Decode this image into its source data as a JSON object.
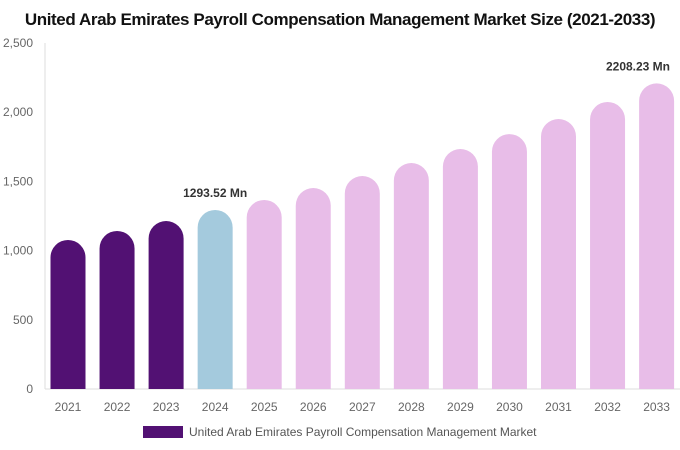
{
  "chart_data": {
    "type": "bar",
    "title": "United Arab Emirates Payroll Compensation Management Market Size (2021-2033)",
    "categories": [
      "2021",
      "2022",
      "2023",
      "2024",
      "2025",
      "2026",
      "2027",
      "2028",
      "2029",
      "2030",
      "2031",
      "2032",
      "2033"
    ],
    "values": [
      1077,
      1142,
      1214,
      1293.52,
      1366,
      1452,
      1539,
      1633,
      1734,
      1842,
      1951,
      2074,
      2208.23
    ],
    "data_labels": {
      "3": "1293.52 Mn",
      "12": "2208.23 Mn"
    },
    "ylim": [
      0,
      2500
    ],
    "yticks": [
      0,
      500,
      1000,
      1500,
      2000,
      2500
    ],
    "ytick_labels": [
      "0",
      "500",
      "1,000",
      "1,500",
      "2,000",
      "2,500"
    ],
    "grid": false,
    "bar_colors": [
      "#521173",
      "#521173",
      "#521173",
      "#a4cadd",
      "#e8bde8",
      "#e8bde8",
      "#e8bde8",
      "#e8bde8",
      "#e8bde8",
      "#e8bde8",
      "#e8bde8",
      "#e8bde8",
      "#e8bde8"
    ],
    "legend": {
      "position": "bottom",
      "entries": [
        {
          "name": "United Arab Emirates Payroll Compensation Management Market",
          "color": "#521173"
        }
      ]
    }
  }
}
